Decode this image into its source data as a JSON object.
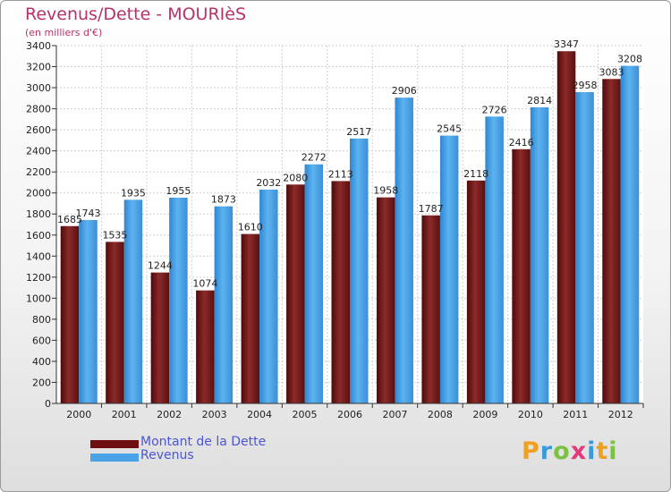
{
  "chart_data": {
    "type": "bar",
    "title": "Revenus/Dette - MOURIèS",
    "subtitle": "(en milliers d'€)",
    "categories": [
      "2000",
      "2001",
      "2002",
      "2003",
      "2004",
      "2005",
      "2006",
      "2007",
      "2008",
      "2009",
      "2010",
      "2011",
      "2012"
    ],
    "series": [
      {
        "name": "Montant de la Dette",
        "color": "#7a1c1c",
        "labels": [
          "1685",
          "1535",
          "1244",
          "1074",
          "1610",
          "2080",
          "2113",
          "1958",
          "1787",
          "2118",
          "2416",
          "3347",
          "3083"
        ],
        "values": [
          1685,
          1535,
          1244,
          1074,
          1610,
          2080,
          2113,
          1958,
          1787,
          2118,
          2416,
          3347,
          3083
        ]
      },
      {
        "name": "Revenus",
        "color": "#4aa3e6",
        "labels": [
          "1743",
          "1935",
          "1955",
          "1873",
          "2032",
          "2272",
          "2517",
          "2906",
          "2545",
          "2726",
          "2814",
          "2958",
          "3208"
        ],
        "values": [
          1743,
          1935,
          1955,
          1873,
          2032,
          2272,
          2517,
          2906,
          2545,
          2726,
          2814,
          2958,
          3208
        ]
      }
    ],
    "ylim": [
      0,
      3400
    ],
    "yticks": [
      "0",
      "200",
      "400",
      "600",
      "800",
      "1000",
      "1200",
      "1400",
      "1600",
      "1800",
      "2000",
      "2200",
      "2400",
      "2600",
      "2800",
      "3000",
      "3200",
      "3400"
    ],
    "grid": true,
    "legend_position": "bottom-left"
  },
  "logo": {
    "letters": [
      "P",
      "r",
      "o",
      "x",
      "i",
      "t",
      "i"
    ],
    "colors": [
      "#f0a020",
      "#3a9ad9",
      "#7cc242",
      "#e23a7a",
      "#3a9ad9",
      "#f0a020",
      "#7cc242"
    ]
  }
}
